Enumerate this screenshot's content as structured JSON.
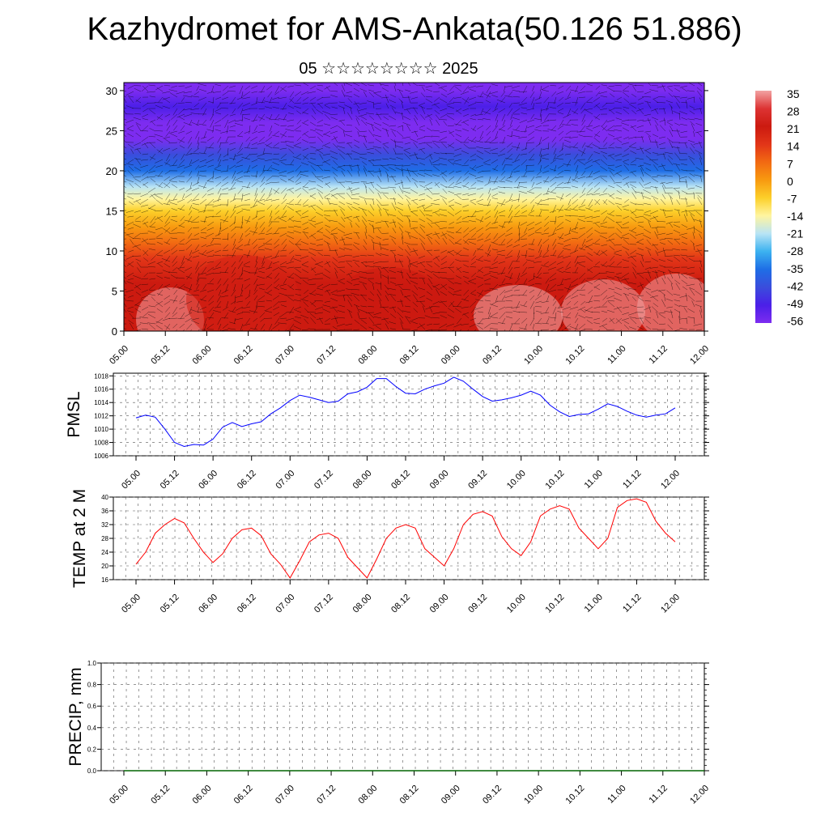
{
  "page": {
    "title": "Kazhydromet for AMS-Ankata(50.126 51.886)",
    "subtitle": "05 ☆☆☆☆☆☆☆☆ 2025"
  },
  "chart_data": [
    {
      "type": "heatmap",
      "title": "",
      "xlabel": "",
      "ylabel": "",
      "x_tick_labels": [
        "05.00",
        "05.12",
        "06.00",
        "06.12",
        "07.00",
        "07.12",
        "08.00",
        "08.12",
        "09.00",
        "09.12",
        "10.00",
        "10.12",
        "11.00",
        "11.12",
        "12.00"
      ],
      "y_ticks": [
        0,
        5,
        10,
        15,
        20,
        25,
        30
      ],
      "ylim": [
        0,
        31
      ],
      "wind_vectors": true,
      "colorbar_labels": [
        "35",
        "28",
        "21",
        "14",
        "7",
        "0",
        "-7",
        "-14",
        "-21",
        "-28",
        "-35",
        "-42",
        "-49",
        "-56"
      ],
      "colorbar_colors": [
        "#f2a3a3",
        "#dd3333",
        "#cc1a10",
        "#e23518",
        "#f26a12",
        "#f89a10",
        "#fcd02a",
        "#fff5a0",
        "#b9e4f5",
        "#3cb2f0",
        "#1e6ee6",
        "#3a4ddc",
        "#4b1fe8",
        "#7d2cf0"
      ],
      "temperature_levels": [
        {
          "height": 0,
          "value": 22
        },
        {
          "height": 3,
          "value": 24
        },
        {
          "height": 6,
          "value": 22
        },
        {
          "height": 9,
          "value": 14
        },
        {
          "height": 11,
          "value": 8
        },
        {
          "height": 13,
          "value": 2
        },
        {
          "height": 15,
          "value": -6
        },
        {
          "height": 16.5,
          "value": -12
        },
        {
          "height": 18,
          "value": -22
        },
        {
          "height": 20,
          "value": -32
        },
        {
          "height": 22,
          "value": -45
        },
        {
          "height": 24,
          "value": -55
        },
        {
          "height": 26,
          "value": -54
        },
        {
          "height": 28,
          "value": -52
        },
        {
          "height": 30,
          "value": -56
        },
        {
          "height": 31,
          "value": -58
        }
      ]
    },
    {
      "type": "line",
      "ylabel": "PMSL",
      "x_tick_labels": [
        "05.00",
        "05.12",
        "06.00",
        "06.12",
        "07.00",
        "07.12",
        "08.00",
        "08.12",
        "09.00",
        "09.12",
        "10.00",
        "10.12",
        "11.00",
        "11.12",
        "12.00"
      ],
      "y_ticks": [
        1006,
        1008,
        1010,
        1012,
        1014,
        1016,
        1018
      ],
      "ylim": [
        1006,
        1018.4
      ],
      "series": [
        {
          "color": "#0000ff",
          "values": [
            1011.7,
            1012.1,
            1011.8,
            1010.0,
            1008.0,
            1007.4,
            1007.7,
            1007.6,
            1008.5,
            1010.3,
            1011.0,
            1010.4,
            1010.8,
            1011.1,
            1012.3,
            1013.2,
            1014.3,
            1015.1,
            1014.8,
            1014.4,
            1014.0,
            1014.2,
            1015.3,
            1015.6,
            1016.3,
            1017.6,
            1017.6,
            1016.4,
            1015.4,
            1015.3,
            1016.0,
            1016.5,
            1016.9,
            1017.8,
            1017.2,
            1016.0,
            1014.9,
            1014.2,
            1014.4,
            1014.7,
            1015.1,
            1015.7,
            1015.1,
            1013.6,
            1012.6,
            1011.9,
            1012.2,
            1012.3,
            1013.0,
            1013.8,
            1013.4,
            1012.7,
            1012.1,
            1011.8,
            1012.1,
            1012.3,
            1013.2
          ]
        }
      ]
    },
    {
      "type": "line",
      "ylabel": "TEMP at 2 M",
      "x_tick_labels": [
        "05.00",
        "05.12",
        "06.00",
        "06.12",
        "07.00",
        "07.12",
        "08.00",
        "08.12",
        "09.00",
        "09.12",
        "10.00",
        "10.12",
        "11.00",
        "11.12",
        "12.00"
      ],
      "y_ticks": [
        16,
        20,
        24,
        28,
        32,
        36,
        40
      ],
      "ylim": [
        16,
        40
      ],
      "series": [
        {
          "color": "#ff0000",
          "values": [
            20.5,
            24.0,
            29.5,
            32.0,
            33.8,
            32.5,
            28.0,
            24.0,
            21.0,
            23.5,
            28.0,
            30.5,
            31.0,
            28.8,
            23.5,
            20.5,
            16.5,
            21.5,
            27.0,
            29.0,
            29.5,
            28.0,
            22.5,
            19.5,
            16.5,
            22.0,
            28.0,
            31.0,
            32.0,
            31.0,
            25.0,
            22.5,
            20.0,
            25.0,
            32.0,
            35.0,
            35.8,
            34.5,
            28.5,
            25.0,
            23.0,
            27.0,
            34.5,
            36.5,
            37.5,
            36.5,
            31.0,
            28.0,
            25.0,
            28.0,
            37.0,
            39.0,
            39.5,
            38.5,
            33.0,
            29.5,
            27.0
          ]
        }
      ]
    },
    {
      "type": "line",
      "ylabel": "PRECIP, mm",
      "x_tick_labels": [
        "05.00",
        "05.12",
        "06.00",
        "06.12",
        "07.00",
        "07.12",
        "08.00",
        "08.12",
        "09.00",
        "09.12",
        "10.00",
        "10.12",
        "11.00",
        "11.12",
        "12.00"
      ],
      "y_tick_labels": [
        "0.0",
        "0.2",
        "0.4",
        "0.6",
        "0.8",
        "1.0"
      ],
      "ylim": [
        0,
        1
      ],
      "series": [
        {
          "color": "#006400",
          "values": [
            0,
            0,
            0,
            0,
            0,
            0,
            0,
            0,
            0,
            0,
            0,
            0,
            0,
            0,
            0
          ]
        }
      ]
    }
  ]
}
